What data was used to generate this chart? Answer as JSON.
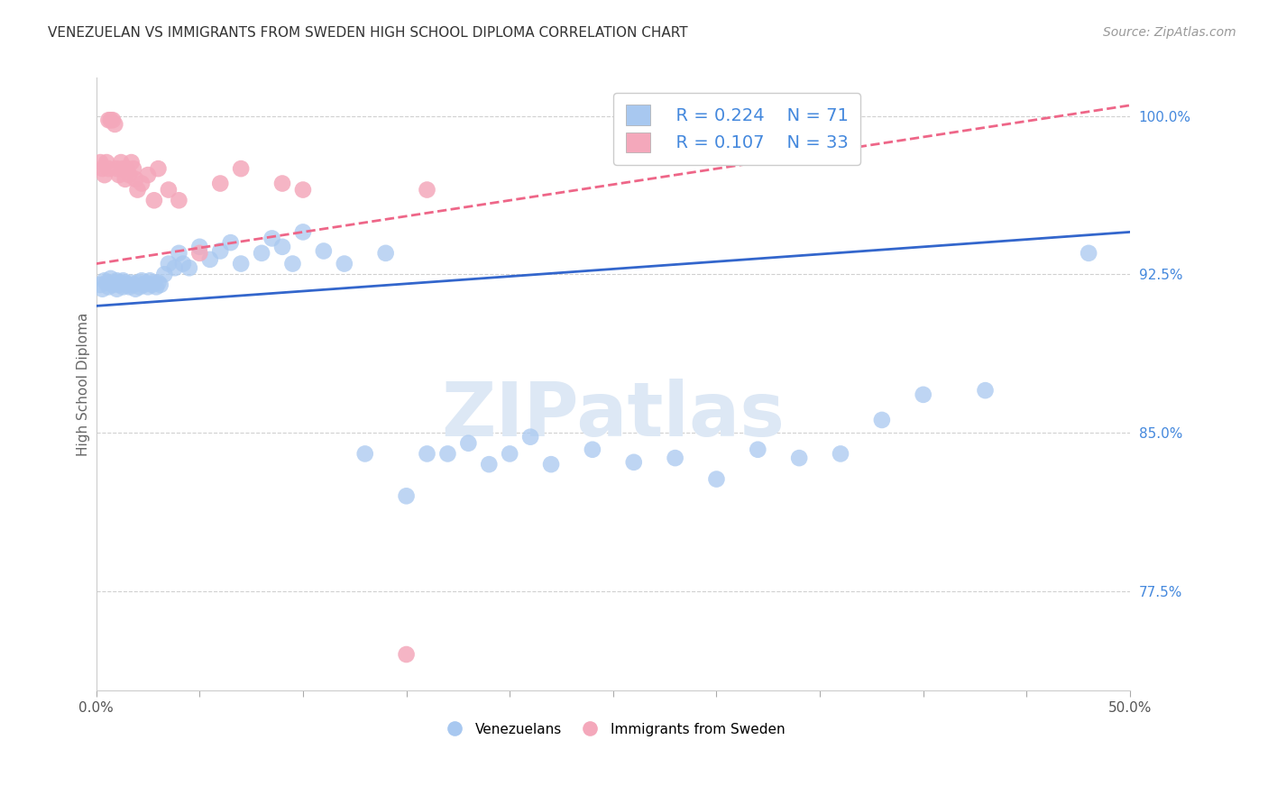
{
  "title": "VENEZUELAN VS IMMIGRANTS FROM SWEDEN HIGH SCHOOL DIPLOMA CORRELATION CHART",
  "source": "Source: ZipAtlas.com",
  "ylabel": "High School Diploma",
  "xlim": [
    0.0,
    0.5
  ],
  "ylim": [
    0.728,
    1.018
  ],
  "xticks": [
    0.0,
    0.05,
    0.1,
    0.15,
    0.2,
    0.25,
    0.3,
    0.35,
    0.4,
    0.45,
    0.5
  ],
  "xticklabels": [
    "0.0%",
    "",
    "",
    "",
    "",
    "",
    "",
    "",
    "",
    "",
    "50.0%"
  ],
  "yticks": [
    0.775,
    0.85,
    0.925,
    1.0
  ],
  "yticklabels": [
    "77.5%",
    "85.0%",
    "92.5%",
    "100.0%"
  ],
  "watermark": "ZIPatlas",
  "blue_color": "#A8C8F0",
  "pink_color": "#F4A8BB",
  "line_blue": "#3366CC",
  "line_pink": "#EE6688",
  "venezuelans_x": [
    0.002,
    0.003,
    0.004,
    0.005,
    0.006,
    0.007,
    0.008,
    0.009,
    0.01,
    0.01,
    0.011,
    0.012,
    0.013,
    0.013,
    0.014,
    0.015,
    0.016,
    0.017,
    0.018,
    0.019,
    0.02,
    0.021,
    0.022,
    0.023,
    0.024,
    0.025,
    0.026,
    0.027,
    0.028,
    0.029,
    0.03,
    0.031,
    0.033,
    0.035,
    0.038,
    0.04,
    0.042,
    0.045,
    0.05,
    0.055,
    0.06,
    0.065,
    0.07,
    0.08,
    0.085,
    0.09,
    0.095,
    0.1,
    0.11,
    0.12,
    0.13,
    0.14,
    0.15,
    0.16,
    0.17,
    0.18,
    0.19,
    0.2,
    0.21,
    0.22,
    0.24,
    0.26,
    0.28,
    0.3,
    0.32,
    0.34,
    0.36,
    0.38,
    0.4,
    0.43,
    0.48
  ],
  "venezuelans_y": [
    0.92,
    0.918,
    0.922,
    0.921,
    0.919,
    0.923,
    0.92,
    0.921,
    0.918,
    0.922,
    0.92,
    0.921,
    0.919,
    0.922,
    0.921,
    0.92,
    0.919,
    0.921,
    0.92,
    0.918,
    0.921,
    0.919,
    0.922,
    0.92,
    0.921,
    0.919,
    0.922,
    0.92,
    0.921,
    0.919,
    0.921,
    0.92,
    0.925,
    0.93,
    0.928,
    0.935,
    0.93,
    0.928,
    0.938,
    0.932,
    0.936,
    0.94,
    0.93,
    0.935,
    0.942,
    0.938,
    0.93,
    0.945,
    0.936,
    0.93,
    0.84,
    0.935,
    0.82,
    0.84,
    0.84,
    0.845,
    0.835,
    0.84,
    0.848,
    0.835,
    0.842,
    0.836,
    0.838,
    0.828,
    0.842,
    0.838,
    0.84,
    0.856,
    0.868,
    0.87,
    0.935
  ],
  "sweden_x": [
    0.002,
    0.003,
    0.004,
    0.005,
    0.006,
    0.006,
    0.007,
    0.008,
    0.009,
    0.01,
    0.011,
    0.012,
    0.013,
    0.014,
    0.015,
    0.016,
    0.017,
    0.018,
    0.019,
    0.02,
    0.022,
    0.025,
    0.028,
    0.03,
    0.035,
    0.04,
    0.05,
    0.06,
    0.07,
    0.09,
    0.1,
    0.15,
    0.16
  ],
  "sweden_y": [
    0.978,
    0.975,
    0.972,
    0.978,
    0.975,
    0.998,
    0.998,
    0.998,
    0.996,
    0.975,
    0.972,
    0.978,
    0.975,
    0.97,
    0.975,
    0.972,
    0.978,
    0.975,
    0.97,
    0.965,
    0.968,
    0.972,
    0.96,
    0.975,
    0.965,
    0.96,
    0.935,
    0.968,
    0.975,
    0.968,
    0.965,
    0.745,
    0.965
  ],
  "ven_line_x0": 0.0,
  "ven_line_x1": 0.5,
  "ven_line_y0": 0.91,
  "ven_line_y1": 0.945,
  "swe_line_x0": 0.0,
  "swe_line_x1": 0.5,
  "swe_line_y0": 0.93,
  "swe_line_y1": 1.005
}
